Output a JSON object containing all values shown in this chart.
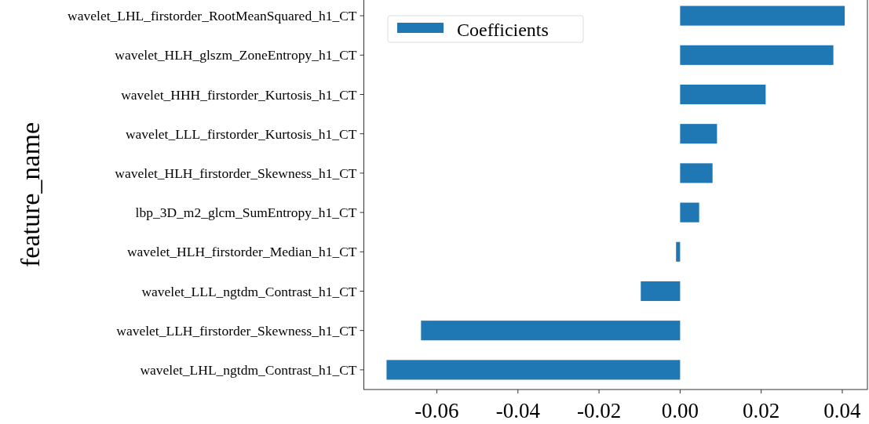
{
  "chart_data": {
    "type": "bar",
    "orientation": "horizontal",
    "ylabel": "feature_name",
    "categories": [
      "wavelet_LHL_firstorder_RootMeanSquared_h1_CT",
      "wavelet_HLH_glszm_ZoneEntropy_h1_CT ",
      "wavelet_HHH_firstorder_Kurtosis_h1_CT ",
      "wavelet_LLL_firstorder_Kurtosis_h1_CT",
      "wavelet_HLH_firstorder_Skewness_h1_CT",
      "lbp_3D_m2_glcm_SumEntropy_h1_CT",
      "wavelet_HLH_firstorder_Median_h1_CT",
      "wavelet_LLL_ngtdm_Contrast_h1_CT",
      "wavelet_LLH_firstorder_Skewness_h1_CT",
      "wavelet_LHL_ngtdm_Contrast_h1_CT"
    ],
    "series": [
      {
        "name": "Coefficients",
        "color": "#1f77b4",
        "values": [
          0.0406,
          0.0378,
          0.0211,
          0.0091,
          0.008,
          0.0047,
          -0.001,
          -0.0097,
          -0.0639,
          -0.0724
        ]
      }
    ],
    "xlim": [
      -0.078,
      0.0462
    ],
    "xticks": [
      {
        "value": -0.06,
        "label": "-0.06"
      },
      {
        "value": -0.04,
        "label": "-0.04"
      },
      {
        "value": -0.02,
        "label": "-0.02"
      },
      {
        "value": 0,
        "label": "0.00"
      },
      {
        "value": 0.02,
        "label": "0.02"
      },
      {
        "value": 0.04,
        "label": "0.04"
      }
    ],
    "legend": "top left",
    "grid": false
  }
}
